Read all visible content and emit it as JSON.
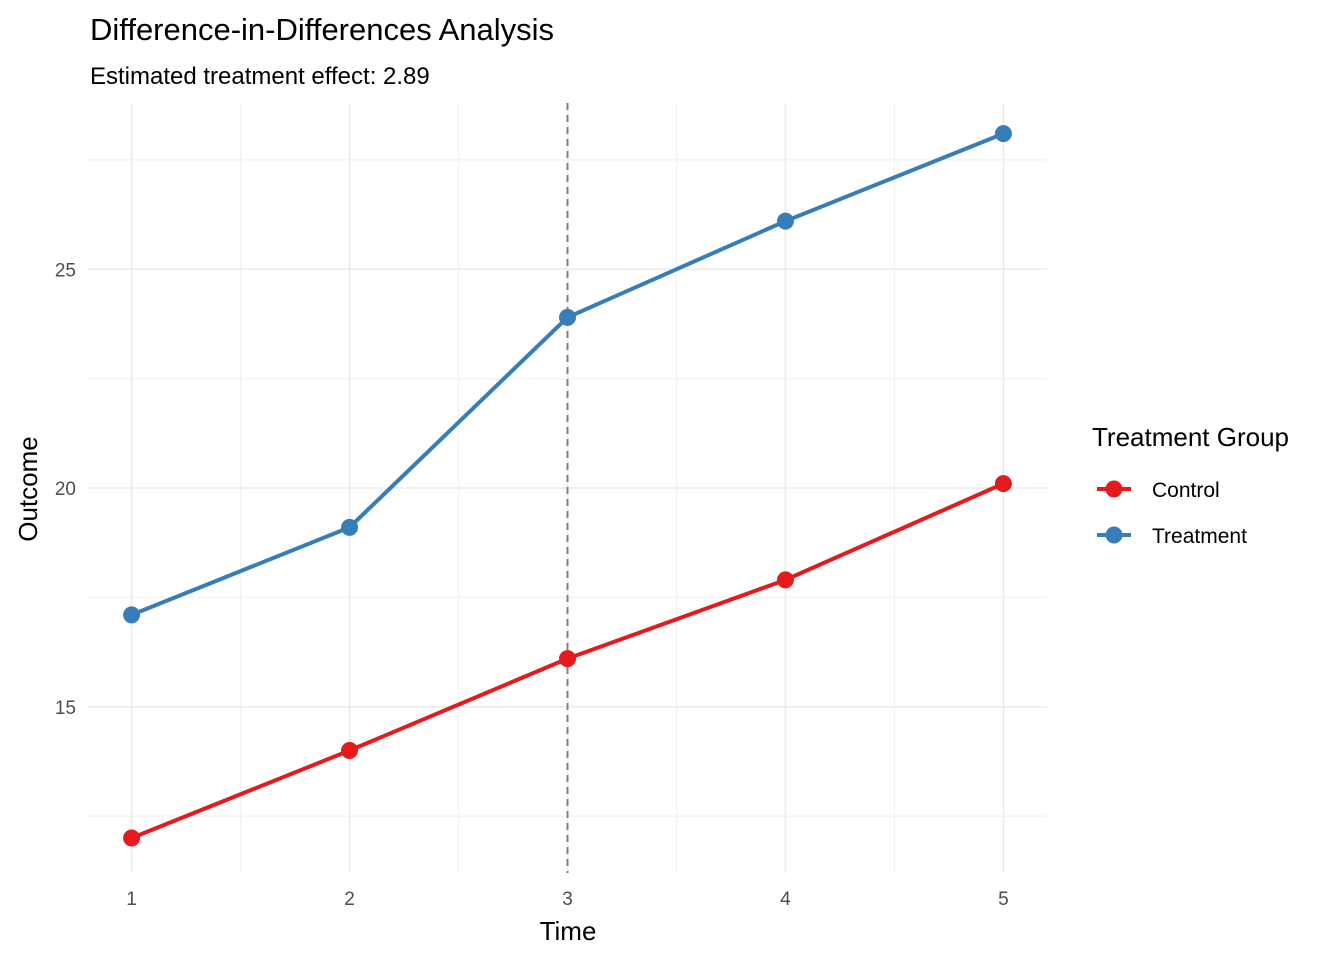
{
  "chart_data": {
    "type": "line",
    "title": "Difference-in-Differences Analysis",
    "subtitle": "Estimated treatment effect: 2.89",
    "xlabel": "Time",
    "ylabel": "Outcome",
    "x": [
      1,
      2,
      3,
      4,
      5
    ],
    "xlim": [
      0.8,
      5.2
    ],
    "ylim": [
      11.2,
      28.8
    ],
    "x_ticks": [
      1,
      2,
      3,
      4,
      5
    ],
    "y_ticks": [
      15,
      20,
      25
    ],
    "y_minor_ticks": [
      12.5,
      17.5,
      22.5,
      27.5
    ],
    "intervention_x": 3,
    "intervention_line_style": "dashed",
    "grid": true,
    "legend": {
      "title": "Treatment Group",
      "position": "right"
    },
    "series": [
      {
        "name": "Control",
        "color": "#e41a1c",
        "values": [
          12.0,
          14.0,
          16.1,
          17.9,
          20.1
        ]
      },
      {
        "name": "Treatment",
        "color": "#377eb8",
        "values": [
          17.1,
          19.1,
          23.9,
          26.1,
          28.1
        ]
      }
    ]
  }
}
